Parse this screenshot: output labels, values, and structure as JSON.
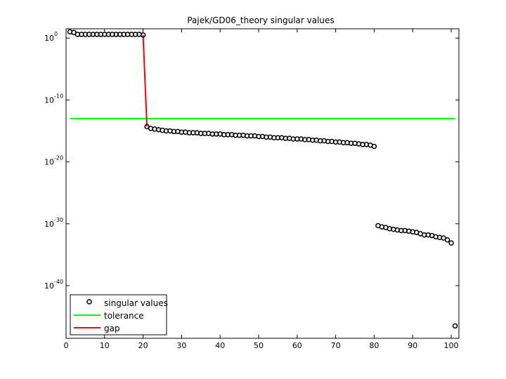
{
  "chart_data": {
    "type": "scatter",
    "title": "Pajek/GD06_theory singular values",
    "xlabel": "",
    "ylabel": "",
    "xlim": [
      0,
      102
    ],
    "ylim_log10": [
      -48.5,
      1.5
    ],
    "y_scale": "log",
    "x_ticks": [
      0,
      10,
      20,
      30,
      40,
      50,
      60,
      70,
      80,
      90,
      100
    ],
    "y_ticks": [
      {
        "exponent": 0,
        "base": "10",
        "exp_label": "0"
      },
      {
        "exponent": -10,
        "base": "10",
        "exp_label": "-10"
      },
      {
        "exponent": -20,
        "base": "10",
        "exp_label": "-20"
      },
      {
        "exponent": -30,
        "base": "10",
        "exp_label": "-30"
      },
      {
        "exponent": -40,
        "base": "10",
        "exp_label": "-40"
      }
    ],
    "grid": false,
    "legend_position": "bottom-left",
    "series": [
      {
        "name": "singular values",
        "style": "marker",
        "color": "#000000",
        "x": [
          1,
          2,
          3,
          4,
          5,
          6,
          7,
          8,
          9,
          10,
          11,
          12,
          13,
          14,
          15,
          16,
          17,
          18,
          19,
          20,
          21,
          22,
          23,
          24,
          25,
          26,
          27,
          28,
          29,
          30,
          31,
          32,
          33,
          34,
          35,
          36,
          37,
          38,
          39,
          40,
          41,
          42,
          43,
          44,
          45,
          46,
          47,
          48,
          49,
          50,
          51,
          52,
          53,
          54,
          55,
          56,
          57,
          58,
          59,
          60,
          61,
          62,
          63,
          64,
          65,
          66,
          67,
          68,
          69,
          70,
          71,
          72,
          73,
          74,
          75,
          76,
          77,
          78,
          79,
          80,
          81,
          82,
          83,
          84,
          85,
          86,
          87,
          88,
          89,
          90,
          91,
          92,
          93,
          94,
          95,
          96,
          97,
          98,
          99,
          100,
          101
        ],
        "log10_values": [
          1.0,
          0.9,
          0.6,
          0.6,
          0.6,
          0.6,
          0.6,
          0.6,
          0.6,
          0.6,
          0.6,
          0.6,
          0.6,
          0.6,
          0.6,
          0.6,
          0.6,
          0.6,
          0.6,
          0.5,
          -14.3,
          -14.6,
          -14.7,
          -14.8,
          -14.9,
          -15.0,
          -15.0,
          -15.1,
          -15.1,
          -15.2,
          -15.2,
          -15.3,
          -15.3,
          -15.3,
          -15.4,
          -15.4,
          -15.4,
          -15.5,
          -15.5,
          -15.5,
          -15.6,
          -15.6,
          -15.6,
          -15.7,
          -15.7,
          -15.7,
          -15.8,
          -15.8,
          -15.8,
          -15.9,
          -15.9,
          -16.0,
          -16.0,
          -16.1,
          -16.1,
          -16.1,
          -16.2,
          -16.2,
          -16.3,
          -16.3,
          -16.3,
          -16.4,
          -16.4,
          -16.5,
          -16.5,
          -16.6,
          -16.6,
          -16.7,
          -16.7,
          -16.8,
          -16.8,
          -16.9,
          -16.9,
          -17.0,
          -17.0,
          -17.1,
          -17.2,
          -17.2,
          -17.3,
          -17.5,
          -30.3,
          -30.5,
          -30.6,
          -30.8,
          -30.9,
          -31.0,
          -31.1,
          -31.1,
          -31.2,
          -31.3,
          -31.4,
          -31.6,
          -31.8,
          -31.8,
          -31.9,
          -32.1,
          -32.2,
          -32.3,
          -32.6,
          -33.1,
          -46.5
        ]
      },
      {
        "name": "tolerance",
        "style": "line",
        "color": "#00ff00",
        "x": [
          1,
          101
        ],
        "log10_values": [
          -13.0,
          -13.0
        ]
      },
      {
        "name": "gap",
        "style": "line",
        "color": "#ff0000",
        "x": [
          20,
          21
        ],
        "log10_values": [
          0.5,
          -14.3
        ]
      }
    ]
  }
}
